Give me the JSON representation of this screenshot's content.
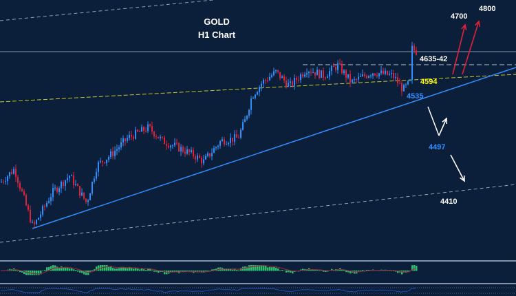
{
  "chart_data": {
    "type": "candlestick",
    "title": "GOLD",
    "subtitle": "H1 Chart",
    "symbol": "GOLD",
    "timeframe": "H1",
    "price_path": [
      4442,
      4464,
      4368,
      4425,
      4453,
      4408,
      4470,
      4487,
      4515,
      4532,
      4510,
      4498,
      4487,
      4476,
      4510,
      4515,
      4543,
      4583,
      4606,
      4623,
      4600,
      4628,
      4617,
      4634,
      4606,
      4623,
      4617,
      4594,
      4606,
      4662,
      4656
    ],
    "levels": [
      {
        "label": "4800",
        "value": 4800,
        "color": "#ffffff"
      },
      {
        "label": "4700",
        "value": 4700,
        "color": "#ffffff"
      },
      {
        "label": "4635-42",
        "value": 4635,
        "color": "#ffffff"
      },
      {
        "label": "4594",
        "value": 4594,
        "color": "#ffff00"
      },
      {
        "label": "4535",
        "value": 4535,
        "color": "#2f8fff"
      },
      {
        "label": "4497",
        "value": 4497,
        "color": "#2f8fff"
      },
      {
        "label": "4410",
        "value": 4410,
        "color": "#ffffff"
      }
    ],
    "colors": {
      "background": "#0b1f3a",
      "bull": "#2f8fff",
      "bear": "#e0223a",
      "trend": "#2f8fff",
      "channel": "#c8c830",
      "arrow_up": "#e0223a",
      "arrow_alt": "#ffffff",
      "histogram": "#2dbf6e",
      "signal": "#8a2a40"
    }
  }
}
